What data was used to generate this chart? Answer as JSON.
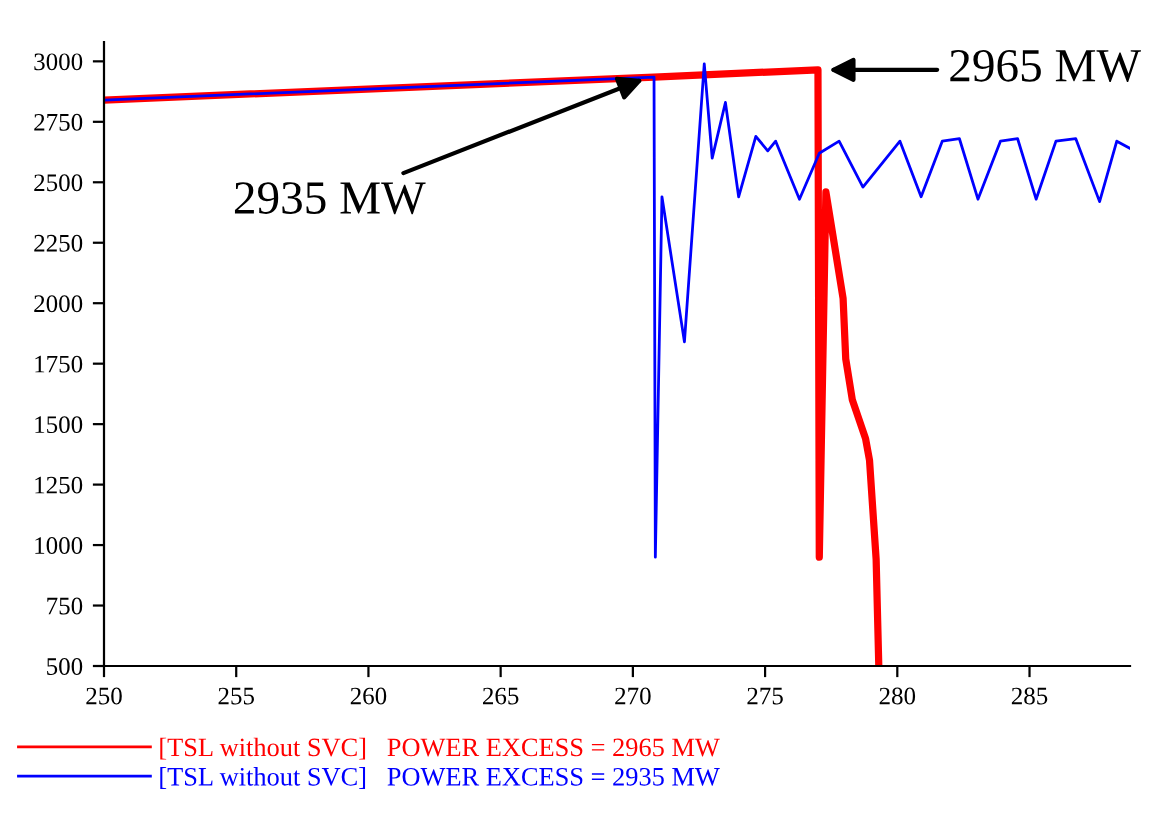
{
  "chart_data": {
    "type": "line",
    "series": [
      {
        "name": "[TSL without SVC]   POWER EXCESS = 2965 MW",
        "color": "#ff0000",
        "x": [
          250,
          270.8,
          277.0,
          277.05,
          277.3,
          277.95,
          278.05,
          278.3,
          278.8,
          278.95,
          279.2,
          279.3
        ],
        "values": [
          2840,
          2935,
          2965,
          950,
          2460,
          2020,
          1770,
          1600,
          1440,
          1350,
          940,
          500
        ]
      },
      {
        "name": "[TSL without SVC]   POWER EXCESS = 2935 MW",
        "color": "#0000ff",
        "x": [
          250,
          270.8,
          270.85,
          271.1,
          271.95,
          272.7,
          273.0,
          273.5,
          274.0,
          274.65,
          275.1,
          275.4,
          276.3,
          277.05,
          277.8,
          278.7,
          280.1,
          280.9,
          281.7,
          282.35,
          283.05,
          283.9,
          284.55,
          285.25,
          286.0,
          286.75,
          287.65,
          288.3,
          288.8
        ],
        "values": [
          2840,
          2935,
          950,
          2440,
          1840,
          2990,
          2600,
          2830,
          2440,
          2690,
          2630,
          2670,
          2430,
          2620,
          2670,
          2480,
          2670,
          2440,
          2670,
          2680,
          2430,
          2670,
          2680,
          2430,
          2670,
          2680,
          2420,
          2670,
          2640
        ]
      }
    ],
    "xlim": [
      250,
      288.8
    ],
    "ylim": [
      500,
      3080
    ],
    "xticks": [
      250,
      255,
      260,
      265,
      270,
      275,
      280,
      285
    ],
    "yticks": [
      500,
      750,
      1000,
      1250,
      1500,
      1750,
      2000,
      2250,
      2500,
      2750,
      3000
    ],
    "annotations": [
      {
        "text": "2935 MW",
        "x": 270.6,
        "y": 2935
      },
      {
        "text": "2965 MW",
        "x": 277.2,
        "y": 2965
      }
    ],
    "grid": false,
    "legend": "bottom left",
    "marker": "none",
    "line_style": "solid"
  }
}
